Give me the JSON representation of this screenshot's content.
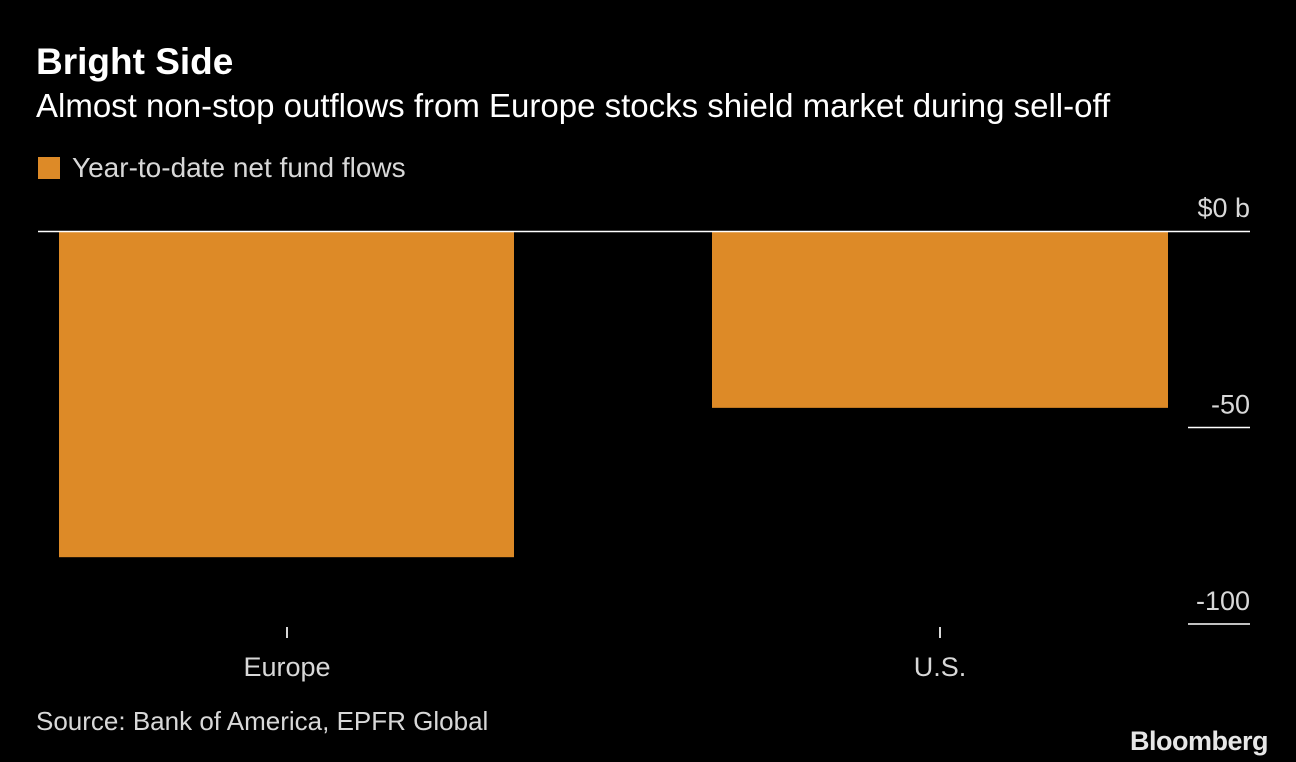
{
  "title": "Bright Side",
  "subtitle": "Almost non-stop outflows from Europe stocks shield market during sell-off",
  "legend_label": "Year-to-date net fund flows",
  "source": "Source: Bank of America, EPFR Global",
  "logo": "Bloomberg",
  "colors": {
    "background": "#000000",
    "bar": "#dd8a27",
    "zero_line": "#ffffff",
    "text": "#ffffff",
    "muted_text": "#d8d8d8"
  },
  "chart_data": {
    "type": "bar",
    "categories": [
      "Europe",
      "U.S."
    ],
    "series": [
      {
        "name": "Year-to-date net fund flows",
        "values": [
          -83,
          -45
        ]
      }
    ],
    "y_tick_labels": [
      "$0 b",
      "-50",
      "-100"
    ],
    "y_ticks": [
      0,
      -50,
      -100
    ],
    "ylim": [
      -100,
      0
    ],
    "grid": false,
    "legend_position": "top-left",
    "y_axis_position": "right"
  }
}
